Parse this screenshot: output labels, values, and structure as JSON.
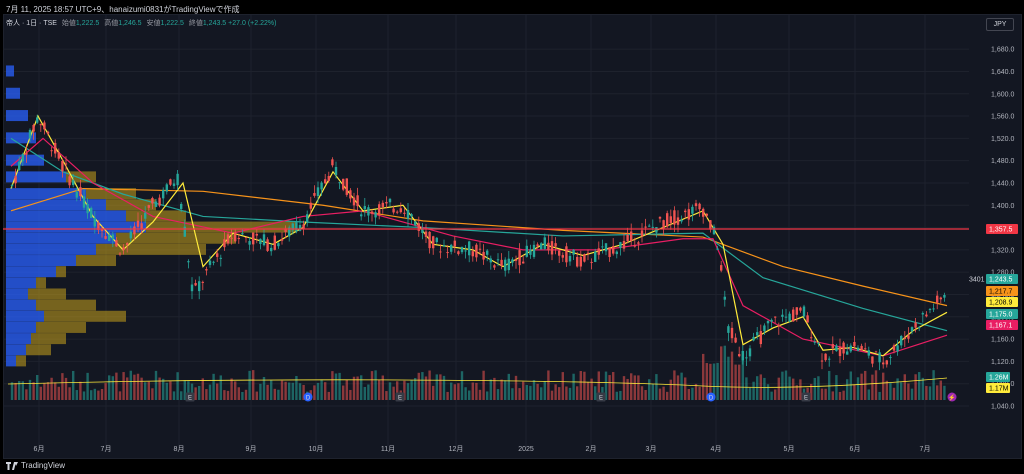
{
  "header": {
    "text": "7月 11, 2025 18:57 UTC+9、hanaizumi0831がTradingViewで作成"
  },
  "legend": {
    "symbol": "帝人 · 1日 · TSE",
    "open_label": "始値",
    "open": "1,222.5",
    "high_label": "高値",
    "high": "1,246.5",
    "low_label": "安値",
    "low": "1,222.5",
    "close_label": "終値",
    "close": "1,243.5",
    "change": "+27.0 (+2.22%)"
  },
  "currency": "JPY",
  "price_axis": [
    "1,680.0",
    "1,640.0",
    "1,600.0",
    "1,560.0",
    "1,520.0",
    "1,480.0",
    "1,440.0",
    "1,400.0",
    "1,360.0",
    "1,320.0",
    "1,280.0",
    "1,240.0",
    "1,200.0",
    "1,160.0",
    "1,120.0",
    "1,080.0",
    "1,040.0"
  ],
  "time_axis": [
    "6月",
    "7月",
    "8月",
    "9月",
    "10月",
    "11月",
    "12月",
    "2025",
    "2月",
    "3月",
    "4月",
    "5月",
    "6月",
    "7月"
  ],
  "tags": {
    "hline": "1,357.5",
    "ticker": "3401",
    "last": "1,243.5",
    "ma_orange": "1,217.7",
    "ma_yellow": "1,208.9",
    "ma_teal": "1,175.0",
    "ma_pink": "1,167.1",
    "vol_1": "1.26M",
    "vol_2": "1.17M"
  },
  "colors": {
    "up": "#26a69a",
    "down": "#ef5350",
    "hline": "#f23645",
    "ma_orange": "#f7931a",
    "ma_yellow": "#ffeb3b",
    "ma_teal": "#26a69a",
    "ma_pink": "#e91e63"
  },
  "event_markers": [
    "E",
    "D",
    "E",
    "E",
    "D",
    "E",
    "⚡"
  ],
  "footer": {
    "brand": "TradingView"
  },
  "chart_data": {
    "type": "candlestick",
    "symbol": "帝人",
    "timeframe": "1日",
    "currency": "JPY",
    "ylim": [
      1040,
      1700
    ],
    "x": [
      "6月",
      "7月",
      "8月",
      "9月",
      "10月",
      "11月",
      "12月",
      "2025",
      "2月",
      "3月",
      "4月",
      "5月",
      "6月",
      "7月"
    ],
    "close_approx": [
      1470,
      1350,
      1300,
      1330,
      1450,
      1350,
      1310,
      1320,
      1300,
      1350,
      1280,
      1150,
      1130,
      1243.5
    ],
    "horizontal_line": 1357.5,
    "moving_averages": [
      {
        "color": "ma_orange",
        "last": 1217.7
      },
      {
        "color": "ma_yellow",
        "last": 1208.9
      },
      {
        "color": "ma_teal",
        "last": 1175.0
      },
      {
        "color": "ma_pink",
        "last": 1167.1
      }
    ],
    "volume_last": [
      "1.26M",
      "1.17M"
    ]
  }
}
